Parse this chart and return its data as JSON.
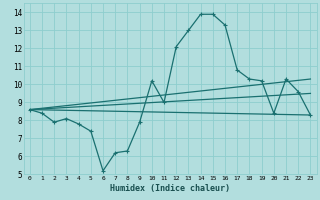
{
  "xlabel": "Humidex (Indice chaleur)",
  "background_color": "#b2dede",
  "grid_color": "#8ecece",
  "line_color": "#1a7070",
  "xlim": [
    -0.5,
    23.5
  ],
  "ylim": [
    5,
    14.5
  ],
  "xtick_vals": [
    0,
    1,
    2,
    3,
    4,
    5,
    6,
    7,
    8,
    9,
    10,
    11,
    12,
    13,
    14,
    15,
    16,
    17,
    18,
    19,
    20,
    21,
    22,
    23
  ],
  "ytick_vals": [
    5,
    6,
    7,
    8,
    9,
    10,
    11,
    12,
    13,
    14
  ],
  "series1_x": [
    0,
    1,
    2,
    3,
    4,
    5,
    6,
    7,
    8,
    9,
    10,
    11,
    12,
    13,
    14,
    15,
    16,
    17,
    18,
    19,
    20,
    21,
    22,
    23
  ],
  "series1_y": [
    8.6,
    8.4,
    7.9,
    8.1,
    7.8,
    7.4,
    5.2,
    6.2,
    6.3,
    7.9,
    10.2,
    9.0,
    12.1,
    13.0,
    13.9,
    13.9,
    13.3,
    10.8,
    10.3,
    10.2,
    8.4,
    10.3,
    9.6,
    8.3
  ],
  "series2_x": [
    0,
    23
  ],
  "series2_y": [
    8.6,
    8.3
  ],
  "series3_x": [
    0,
    23
  ],
  "series3_y": [
    8.6,
    10.3
  ],
  "series4_x": [
    0,
    23
  ],
  "series4_y": [
    8.6,
    9.5
  ]
}
